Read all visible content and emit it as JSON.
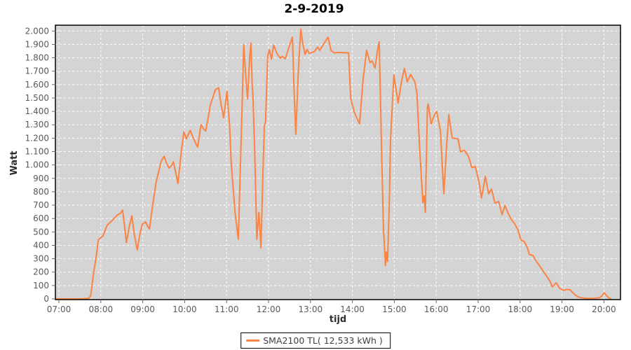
{
  "header": {
    "title": "2-9-2019"
  },
  "colors": {
    "series_line": "#fb8444",
    "plot_background": "#d4d4d4",
    "grid_line": "#ffffff",
    "plot_border": "#000000",
    "tick_mark": "#666666",
    "tick_text": "#595959"
  },
  "legend": {
    "label": "SMA2100 TL( 12,533 kWh )",
    "position": "bottom-center"
  },
  "chart_data": {
    "type": "line",
    "title": "2-9-2019",
    "xlabel": "tijd",
    "ylabel": "Watt",
    "grid": "white dashed gridlines on gray plot background",
    "legend_position": "bottom-center",
    "x_tick_hours": [
      7,
      8,
      9,
      10,
      11,
      12,
      13,
      14,
      15,
      16,
      17,
      18,
      19,
      20
    ],
    "x_tick_labels": [
      "07:00",
      "08:00",
      "09:00",
      "10:00",
      "11:00",
      "12:00",
      "13:00",
      "14:00",
      "15:00",
      "16:00",
      "17:00",
      "18:00",
      "19:00",
      "20:00"
    ],
    "y_tick_values": [
      0,
      100,
      200,
      300,
      400,
      500,
      600,
      700,
      800,
      900,
      1000,
      1100,
      1200,
      1300,
      1400,
      1500,
      1600,
      1700,
      1800,
      1900,
      2000
    ],
    "y_tick_labels": [
      "0",
      "100",
      "200",
      "300",
      "400",
      "500",
      "600",
      "700",
      "800",
      "900",
      "1.000",
      "1.100",
      "1.200",
      "1.300",
      "1.400",
      "1.500",
      "1.600",
      "1.700",
      "1.800",
      "1.900",
      "2.000"
    ],
    "xlim_hours": [
      6.92,
      20.42
    ],
    "ylim": [
      0,
      2043
    ],
    "series": [
      {
        "name": "SMA2100 TL( 12,533 kWh )",
        "color": "#fb8444",
        "points_hour_watt": [
          [
            6.92,
            0
          ],
          [
            7.3,
            0
          ],
          [
            7.55,
            0
          ],
          [
            7.68,
            3
          ],
          [
            7.72,
            8
          ],
          [
            7.76,
            25
          ],
          [
            7.82,
            175
          ],
          [
            7.89,
            315
          ],
          [
            7.94,
            440
          ],
          [
            7.99,
            455
          ],
          [
            8.05,
            470
          ],
          [
            8.15,
            550
          ],
          [
            8.27,
            585
          ],
          [
            8.39,
            625
          ],
          [
            8.47,
            640
          ],
          [
            8.52,
            663
          ],
          [
            8.56,
            560
          ],
          [
            8.61,
            420
          ],
          [
            8.68,
            545
          ],
          [
            8.74,
            620
          ],
          [
            8.8,
            480
          ],
          [
            8.87,
            366
          ],
          [
            8.93,
            480
          ],
          [
            8.99,
            558
          ],
          [
            9.07,
            575
          ],
          [
            9.12,
            540
          ],
          [
            9.16,
            522
          ],
          [
            9.22,
            663
          ],
          [
            9.32,
            872
          ],
          [
            9.44,
            1028
          ],
          [
            9.51,
            1065
          ],
          [
            9.57,
            1010
          ],
          [
            9.63,
            976
          ],
          [
            9.69,
            1000
          ],
          [
            9.73,
            1023
          ],
          [
            9.79,
            940
          ],
          [
            9.84,
            861
          ],
          [
            9.92,
            1100
          ],
          [
            9.98,
            1248
          ],
          [
            10.04,
            1195
          ],
          [
            10.13,
            1258
          ],
          [
            10.18,
            1220
          ],
          [
            10.23,
            1185
          ],
          [
            10.28,
            1150
          ],
          [
            10.31,
            1133
          ],
          [
            10.39,
            1300
          ],
          [
            10.45,
            1270
          ],
          [
            10.5,
            1253
          ],
          [
            10.56,
            1350
          ],
          [
            10.61,
            1446
          ],
          [
            10.73,
            1561
          ],
          [
            10.81,
            1576
          ],
          [
            10.87,
            1450
          ],
          [
            10.93,
            1352
          ],
          [
            11.01,
            1550
          ],
          [
            11.07,
            1300
          ],
          [
            11.11,
            1013
          ],
          [
            11.2,
            650
          ],
          [
            11.28,
            445
          ],
          [
            11.34,
            1100
          ],
          [
            11.41,
            1898
          ],
          [
            11.46,
            1650
          ],
          [
            11.5,
            1494
          ],
          [
            11.55,
            1800
          ],
          [
            11.58,
            1910
          ],
          [
            11.61,
            1600
          ],
          [
            11.63,
            1498
          ],
          [
            11.67,
            1100
          ],
          [
            11.72,
            445
          ],
          [
            11.77,
            645
          ],
          [
            11.82,
            381
          ],
          [
            11.87,
            976
          ],
          [
            11.9,
            1289
          ],
          [
            11.93,
            1327
          ],
          [
            11.98,
            1811
          ],
          [
            12.02,
            1860
          ],
          [
            12.07,
            1789
          ],
          [
            12.12,
            1895
          ],
          [
            12.2,
            1832
          ],
          [
            12.28,
            1797
          ],
          [
            12.33,
            1811
          ],
          [
            12.4,
            1792
          ],
          [
            12.49,
            1881
          ],
          [
            12.57,
            1954
          ],
          [
            12.61,
            1550
          ],
          [
            12.65,
            1228
          ],
          [
            12.71,
            1700
          ],
          [
            12.77,
            2015
          ],
          [
            12.82,
            1900
          ],
          [
            12.84,
            1872
          ],
          [
            12.87,
            1825
          ],
          [
            12.92,
            1863
          ],
          [
            12.97,
            1832
          ],
          [
            13.03,
            1840
          ],
          [
            13.09,
            1846
          ],
          [
            13.17,
            1881
          ],
          [
            13.22,
            1855
          ],
          [
            13.29,
            1890
          ],
          [
            13.42,
            1954
          ],
          [
            13.49,
            1855
          ],
          [
            13.57,
            1837
          ],
          [
            13.7,
            1840
          ],
          [
            13.83,
            1837
          ],
          [
            13.91,
            1837
          ],
          [
            13.96,
            1498
          ],
          [
            14.05,
            1390
          ],
          [
            14.17,
            1306
          ],
          [
            14.26,
            1650
          ],
          [
            14.34,
            1855
          ],
          [
            14.42,
            1764
          ],
          [
            14.47,
            1777
          ],
          [
            14.54,
            1724
          ],
          [
            14.6,
            1860
          ],
          [
            14.64,
            1919
          ],
          [
            14.7,
            1050
          ],
          [
            14.74,
            532
          ],
          [
            14.79,
            249
          ],
          [
            14.81,
            350
          ],
          [
            14.84,
            280
          ],
          [
            14.88,
            700
          ],
          [
            14.91,
            1185
          ],
          [
            14.99,
            1672
          ],
          [
            15.09,
            1463
          ],
          [
            15.17,
            1620
          ],
          [
            15.24,
            1721
          ],
          [
            15.31,
            1620
          ],
          [
            15.39,
            1676
          ],
          [
            15.49,
            1620
          ],
          [
            15.54,
            1533
          ],
          [
            15.6,
            1150
          ],
          [
            15.68,
            719
          ],
          [
            15.71,
            770
          ],
          [
            15.74,
            646
          ],
          [
            15.79,
            1429
          ],
          [
            15.81,
            1455
          ],
          [
            15.88,
            1306
          ],
          [
            15.95,
            1370
          ],
          [
            16.01,
            1399
          ],
          [
            16.1,
            1254
          ],
          [
            16.18,
            785
          ],
          [
            16.25,
            1150
          ],
          [
            16.3,
            1376
          ],
          [
            16.38,
            1202
          ],
          [
            16.45,
            1198
          ],
          [
            16.52,
            1194
          ],
          [
            16.58,
            1098
          ],
          [
            16.67,
            1110
          ],
          [
            16.77,
            1063
          ],
          [
            16.85,
            980
          ],
          [
            16.93,
            988
          ],
          [
            17.02,
            872
          ],
          [
            17.08,
            753
          ],
          [
            17.17,
            915
          ],
          [
            17.25,
            785
          ],
          [
            17.32,
            820
          ],
          [
            17.4,
            715
          ],
          [
            17.49,
            727
          ],
          [
            17.57,
            628
          ],
          [
            17.64,
            698
          ],
          [
            17.7,
            649
          ],
          [
            17.79,
            593
          ],
          [
            17.87,
            562
          ],
          [
            17.95,
            515
          ],
          [
            18.02,
            440
          ],
          [
            18.1,
            428
          ],
          [
            18.17,
            385
          ],
          [
            18.22,
            332
          ],
          [
            18.31,
            324
          ],
          [
            18.39,
            280
          ],
          [
            18.47,
            245
          ],
          [
            18.56,
            202
          ],
          [
            18.64,
            167
          ],
          [
            18.72,
            127
          ],
          [
            18.77,
            89
          ],
          [
            18.86,
            120
          ],
          [
            18.94,
            80
          ],
          [
            19.03,
            63
          ],
          [
            19.11,
            71
          ],
          [
            19.19,
            68
          ],
          [
            19.28,
            40
          ],
          [
            19.36,
            19
          ],
          [
            19.44,
            10
          ],
          [
            19.56,
            4
          ],
          [
            19.73,
            4
          ],
          [
            19.89,
            8
          ],
          [
            19.94,
            20
          ],
          [
            20.01,
            45
          ],
          [
            20.06,
            25
          ],
          [
            20.11,
            10
          ],
          [
            20.16,
            0
          ]
        ]
      }
    ]
  }
}
